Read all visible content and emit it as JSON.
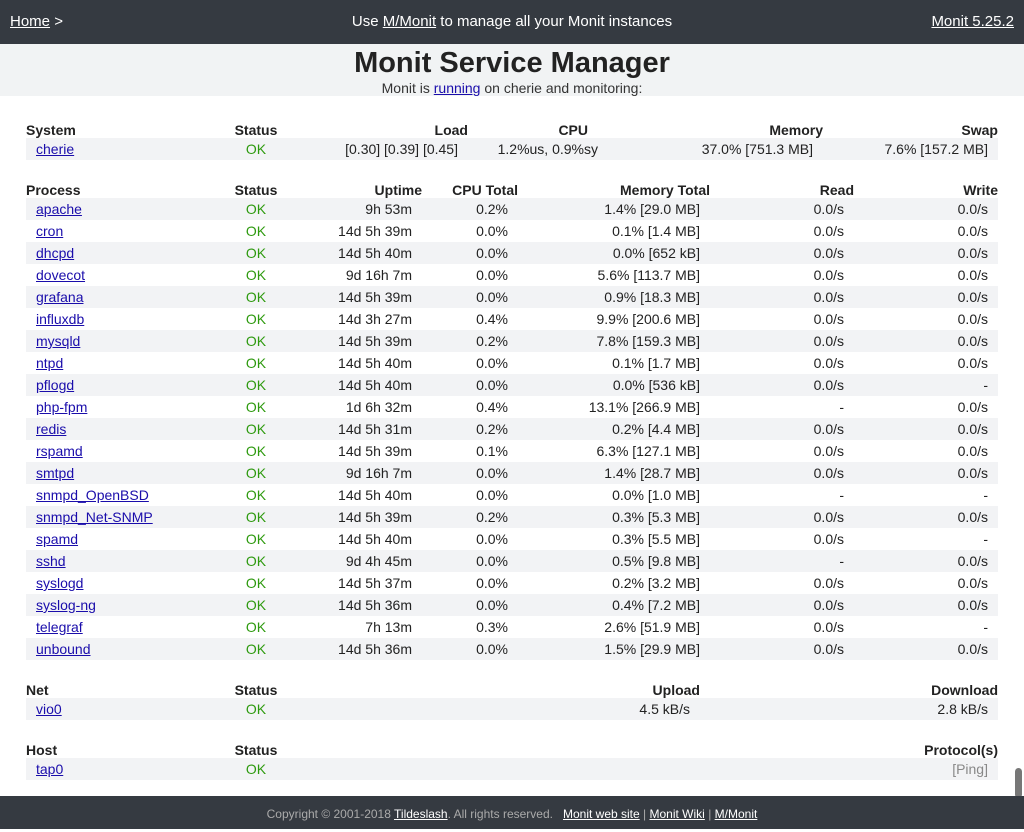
{
  "topbar": {
    "home_label": "Home",
    "home_sep": ">",
    "center_prefix": "Use ",
    "center_link": "M/Monit",
    "center_suffix": " to manage all your Monit instances",
    "version_label": "Monit 5.25.2"
  },
  "header": {
    "title": "Monit Service Manager",
    "sub_prefix": "Monit is ",
    "sub_link": "running",
    "sub_suffix": " on cherie and monitoring:"
  },
  "system": {
    "headers": [
      "System",
      "Status",
      "Load",
      "CPU",
      "Memory",
      "Swap"
    ],
    "rows": [
      {
        "name": "cherie",
        "status": "OK",
        "load": "[0.30] [0.39] [0.45]",
        "cpu": "1.2%us, 0.9%sy",
        "memory": "37.0% [751.3 MB]",
        "swap": "7.6% [157.2 MB]"
      }
    ]
  },
  "process": {
    "headers": [
      "Process",
      "Status",
      "Uptime",
      "CPU Total",
      "Memory Total",
      "Read",
      "Write"
    ],
    "rows": [
      {
        "name": "apache",
        "status": "OK",
        "uptime": "9h 53m",
        "cpu": "0.2%",
        "memory": "1.4% [29.0 MB]",
        "read": "0.0/s",
        "write": "0.0/s"
      },
      {
        "name": "cron",
        "status": "OK",
        "uptime": "14d 5h 39m",
        "cpu": "0.0%",
        "memory": "0.1% [1.4 MB]",
        "read": "0.0/s",
        "write": "0.0/s"
      },
      {
        "name": "dhcpd",
        "status": "OK",
        "uptime": "14d 5h 40m",
        "cpu": "0.0%",
        "memory": "0.0% [652 kB]",
        "read": "0.0/s",
        "write": "0.0/s"
      },
      {
        "name": "dovecot",
        "status": "OK",
        "uptime": "9d 16h 7m",
        "cpu": "0.0%",
        "memory": "5.6% [113.7 MB]",
        "read": "0.0/s",
        "write": "0.0/s"
      },
      {
        "name": "grafana",
        "status": "OK",
        "uptime": "14d 5h 39m",
        "cpu": "0.0%",
        "memory": "0.9% [18.3 MB]",
        "read": "0.0/s",
        "write": "0.0/s"
      },
      {
        "name": "influxdb",
        "status": "OK",
        "uptime": "14d 3h 27m",
        "cpu": "0.4%",
        "memory": "9.9% [200.6 MB]",
        "read": "0.0/s",
        "write": "0.0/s"
      },
      {
        "name": "mysqld",
        "status": "OK",
        "uptime": "14d 5h 39m",
        "cpu": "0.2%",
        "memory": "7.8% [159.3 MB]",
        "read": "0.0/s",
        "write": "0.0/s"
      },
      {
        "name": "ntpd",
        "status": "OK",
        "uptime": "14d 5h 40m",
        "cpu": "0.0%",
        "memory": "0.1% [1.7 MB]",
        "read": "0.0/s",
        "write": "0.0/s"
      },
      {
        "name": "pflogd",
        "status": "OK",
        "uptime": "14d 5h 40m",
        "cpu": "0.0%",
        "memory": "0.0% [536 kB]",
        "read": "0.0/s",
        "write": "-"
      },
      {
        "name": "php-fpm",
        "status": "OK",
        "uptime": "1d 6h 32m",
        "cpu": "0.4%",
        "memory": "13.1% [266.9 MB]",
        "read": "-",
        "write": "0.0/s"
      },
      {
        "name": "redis",
        "status": "OK",
        "uptime": "14d 5h 31m",
        "cpu": "0.2%",
        "memory": "0.2% [4.4 MB]",
        "read": "0.0/s",
        "write": "0.0/s"
      },
      {
        "name": "rspamd",
        "status": "OK",
        "uptime": "14d 5h 39m",
        "cpu": "0.1%",
        "memory": "6.3% [127.1 MB]",
        "read": "0.0/s",
        "write": "0.0/s"
      },
      {
        "name": "smtpd",
        "status": "OK",
        "uptime": "9d 16h 7m",
        "cpu": "0.0%",
        "memory": "1.4% [28.7 MB]",
        "read": "0.0/s",
        "write": "0.0/s"
      },
      {
        "name": "snmpd_OpenBSD",
        "status": "OK",
        "uptime": "14d 5h 40m",
        "cpu": "0.0%",
        "memory": "0.0% [1.0 MB]",
        "read": "-",
        "write": "-"
      },
      {
        "name": "snmpd_Net-SNMP",
        "status": "OK",
        "uptime": "14d 5h 39m",
        "cpu": "0.2%",
        "memory": "0.3% [5.3 MB]",
        "read": "0.0/s",
        "write": "0.0/s"
      },
      {
        "name": "spamd",
        "status": "OK",
        "uptime": "14d 5h 40m",
        "cpu": "0.0%",
        "memory": "0.3% [5.5 MB]",
        "read": "0.0/s",
        "write": "-"
      },
      {
        "name": "sshd",
        "status": "OK",
        "uptime": "9d 4h 45m",
        "cpu": "0.0%",
        "memory": "0.5% [9.8 MB]",
        "read": "-",
        "write": "0.0/s"
      },
      {
        "name": "syslogd",
        "status": "OK",
        "uptime": "14d 5h 37m",
        "cpu": "0.0%",
        "memory": "0.2% [3.2 MB]",
        "read": "0.0/s",
        "write": "0.0/s"
      },
      {
        "name": "syslog-ng",
        "status": "OK",
        "uptime": "14d 5h 36m",
        "cpu": "0.0%",
        "memory": "0.4% [7.2 MB]",
        "read": "0.0/s",
        "write": "0.0/s"
      },
      {
        "name": "telegraf",
        "status": "OK",
        "uptime": "7h 13m",
        "cpu": "0.3%",
        "memory": "2.6% [51.9 MB]",
        "read": "0.0/s",
        "write": "-"
      },
      {
        "name": "unbound",
        "status": "OK",
        "uptime": "14d 5h 36m",
        "cpu": "0.0%",
        "memory": "1.5% [29.9 MB]",
        "read": "0.0/s",
        "write": "0.0/s"
      }
    ]
  },
  "net": {
    "headers": [
      "Net",
      "Status",
      "Upload",
      "Download"
    ],
    "rows": [
      {
        "name": "vio0",
        "status": "OK",
        "upload": "4.5 kB/s",
        "download": "2.8 kB/s"
      }
    ]
  },
  "host": {
    "headers": [
      "Host",
      "Status",
      "Protocol(s)"
    ],
    "rows": [
      {
        "name": "tap0",
        "status": "OK",
        "protocol": "[Ping]"
      }
    ]
  },
  "footer": {
    "copyright_prefix": "Copyright © 2001-2018 ",
    "company": "Tildeslash",
    "copyright_suffix": ". All rights reserved.",
    "links": [
      "Monit web site",
      "Monit Wiki",
      "M/Monit"
    ],
    "sep": "|"
  },
  "colors": {
    "ok": "#2e9a0f",
    "topbar_bg": "#353a41",
    "stripe_bg": "#f2f3f5"
  }
}
